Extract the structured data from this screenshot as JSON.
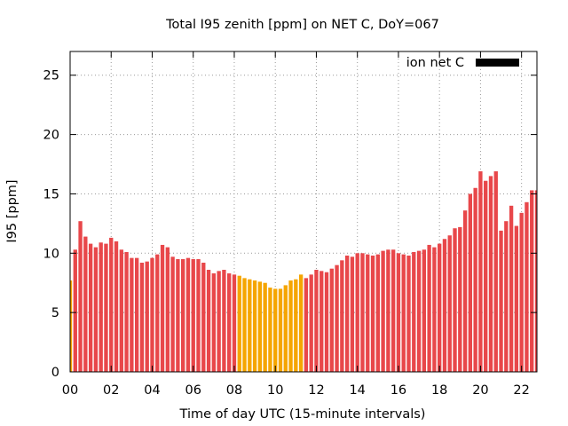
{
  "chart_data": {
    "type": "bar",
    "title": "Total I95 zenith [ppm] on NET C, DoY=067",
    "xlabel": "Time of day UTC (15-minute intervals)",
    "ylabel": "I95 [ppm]",
    "xlim": [
      0,
      22.75
    ],
    "ylim": [
      0,
      27
    ],
    "x_ticks": [
      "00",
      "02",
      "04",
      "06",
      "08",
      "10",
      "12",
      "14",
      "16",
      "18",
      "20",
      "22"
    ],
    "y_ticks": [
      "0",
      "5",
      "10",
      "15",
      "20",
      "25"
    ],
    "grid": true,
    "legend_position": "top-right",
    "series": [
      {
        "name": "ion net C",
        "color": "#e8474a",
        "highlight_color": "#f5a500",
        "x_start_hour": 0,
        "x_step_hours": 0.25,
        "values": [
          7.7,
          10.3,
          12.7,
          11.4,
          10.8,
          10.5,
          10.9,
          10.8,
          11.3,
          11.0,
          10.3,
          10.1,
          9.6,
          9.6,
          9.2,
          9.3,
          9.6,
          9.9,
          10.7,
          10.5,
          9.7,
          9.5,
          9.5,
          9.6,
          9.5,
          9.5,
          9.2,
          8.6,
          8.3,
          8.5,
          8.6,
          8.3,
          8.2,
          8.1,
          7.9,
          7.8,
          7.7,
          7.6,
          7.5,
          7.1,
          7.0,
          7.0,
          7.3,
          7.7,
          7.8,
          8.2,
          7.9,
          8.2,
          8.6,
          8.5,
          8.4,
          8.7,
          9.0,
          9.4,
          9.8,
          9.7,
          10.0,
          10.0,
          9.9,
          9.8,
          9.9,
          10.2,
          10.3,
          10.3,
          10.0,
          9.9,
          9.8,
          10.1,
          10.2,
          10.3,
          10.7,
          10.5,
          10.8,
          11.2,
          11.5,
          12.1,
          12.2,
          13.6,
          15.0,
          15.5,
          16.9,
          16.1,
          16.5,
          16.9,
          11.9,
          12.7,
          14.0,
          12.3,
          13.4,
          14.3,
          15.3,
          15.3
        ],
        "highlight_indices": [
          0,
          33,
          34,
          35,
          36,
          37,
          38,
          39,
          40,
          41,
          42,
          43,
          44,
          45
        ]
      }
    ]
  }
}
